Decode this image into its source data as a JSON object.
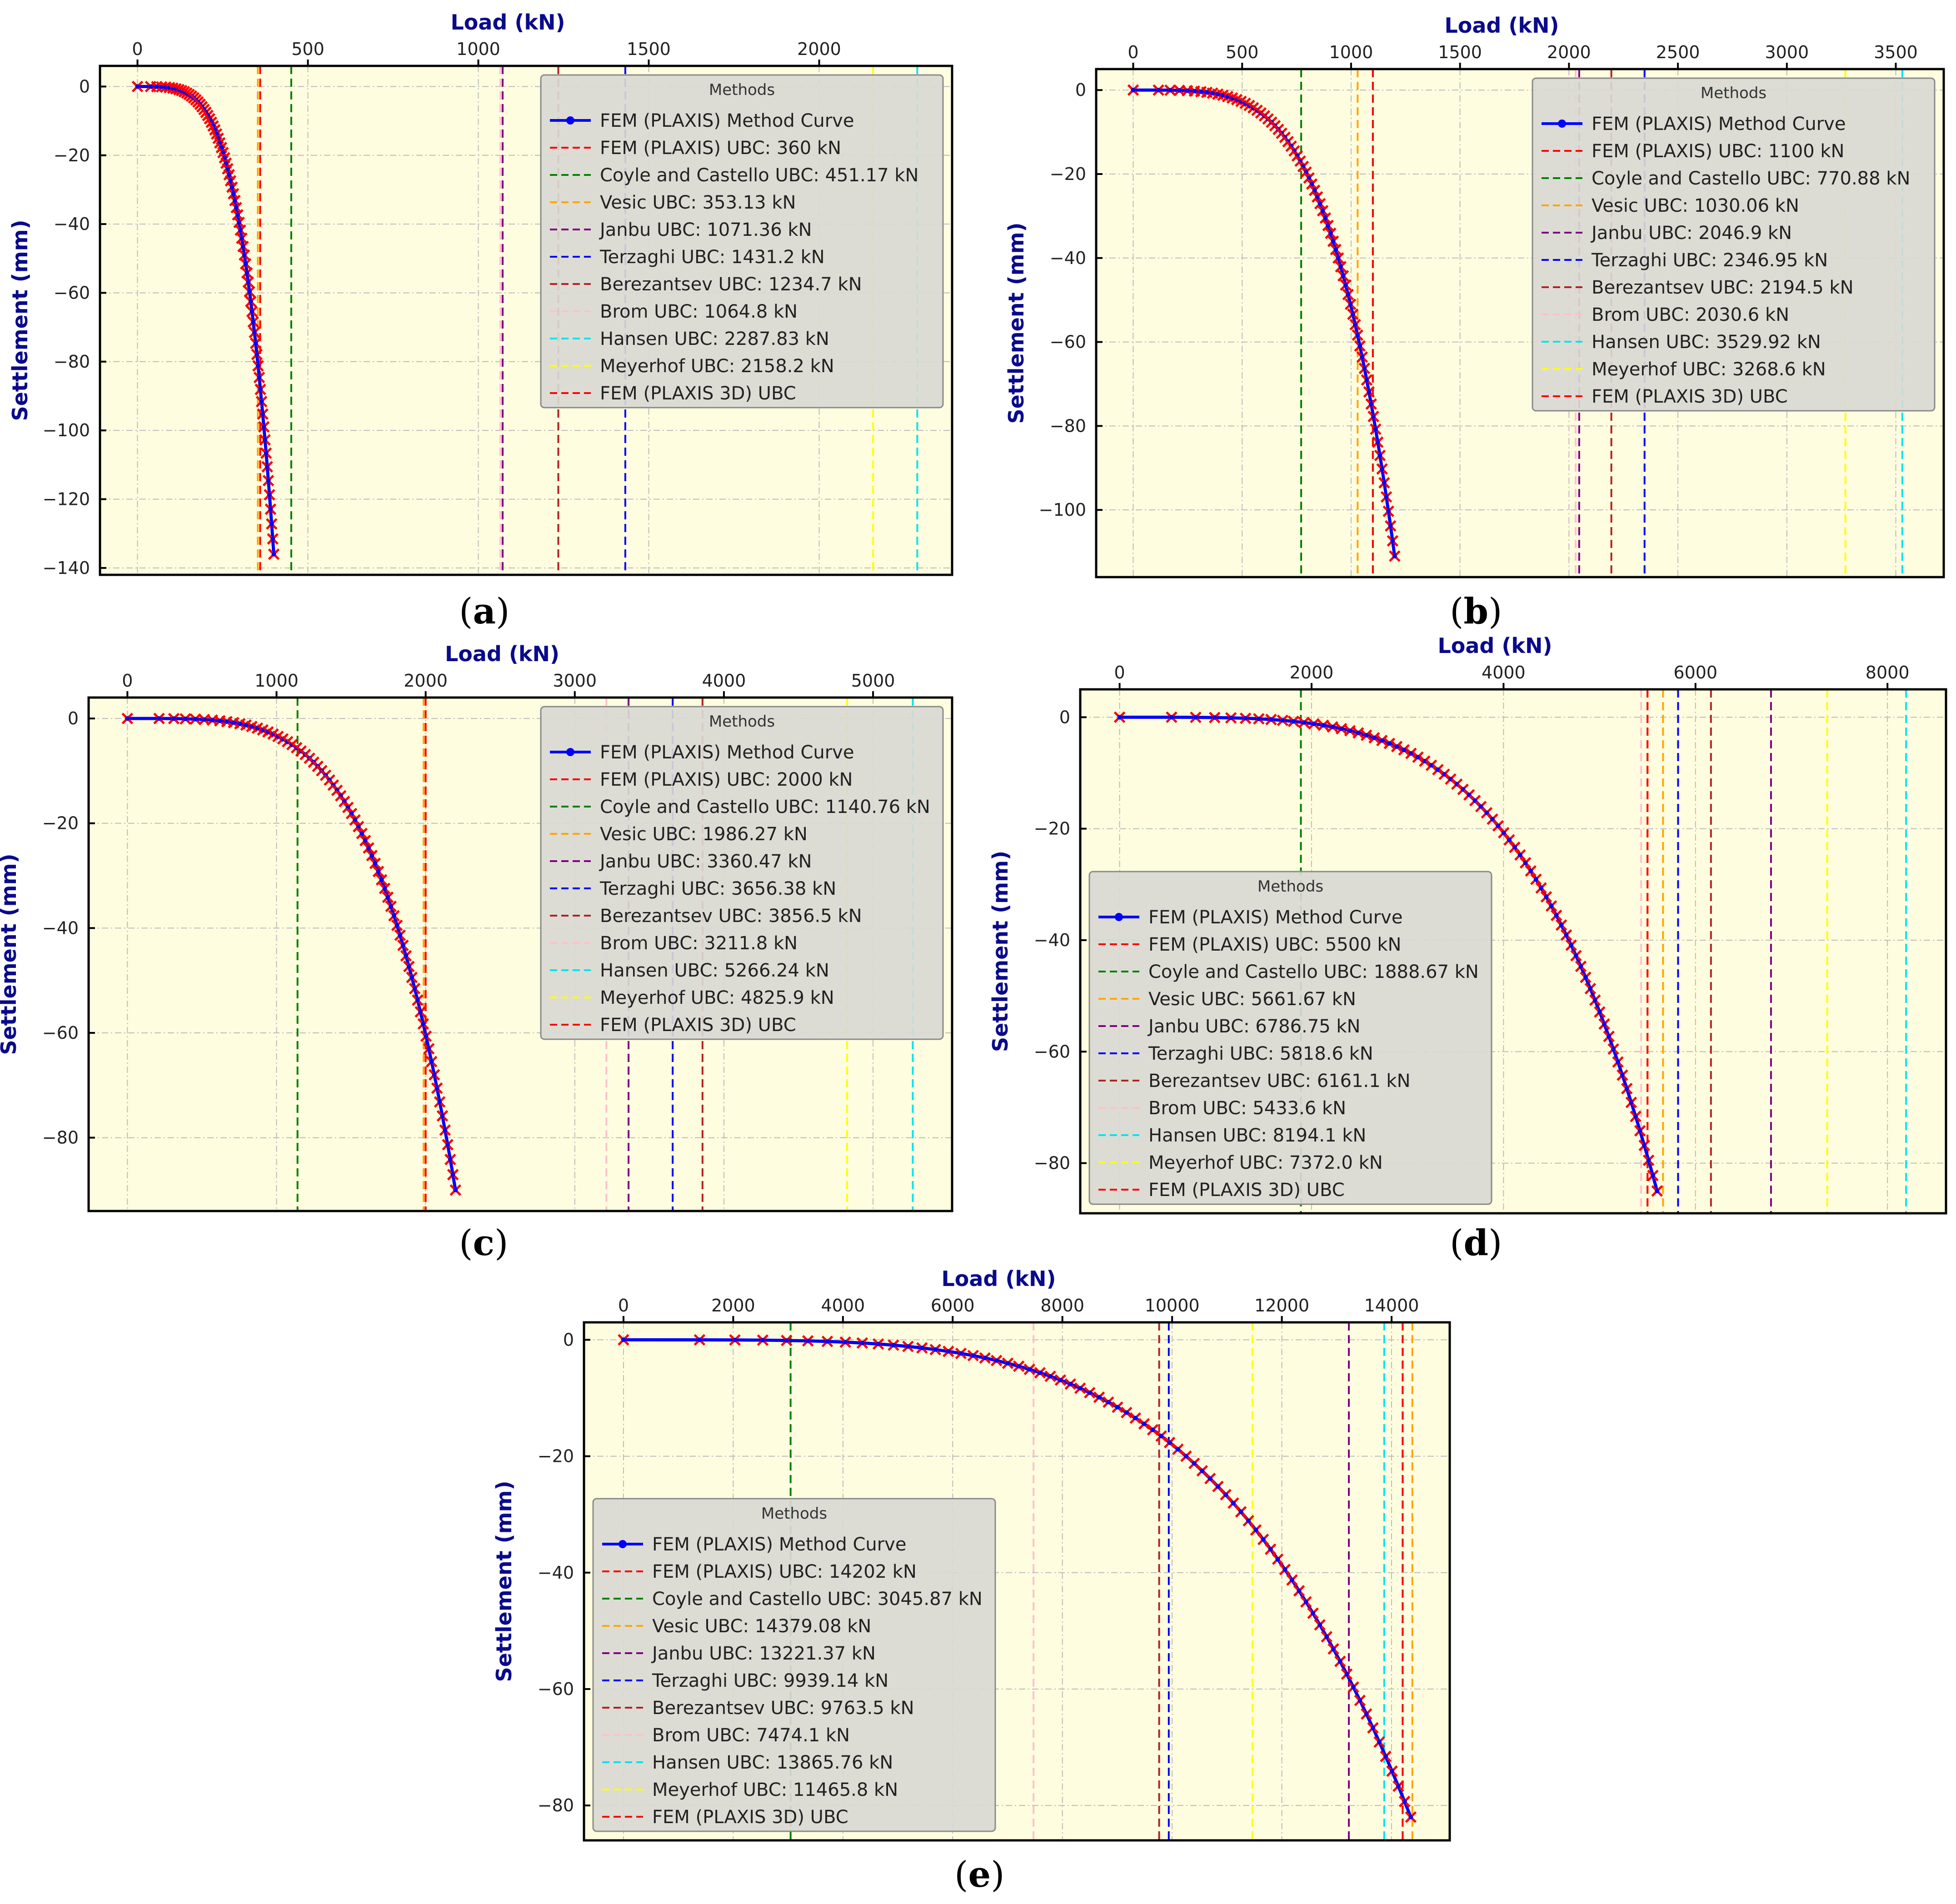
{
  "chart_data": [
    {
      "id": "a",
      "type": "line",
      "caption": "a",
      "xlabel": "Load (kN)",
      "ylabel": "Settlement (mm)",
      "xticks": [
        0,
        500,
        1000,
        1500,
        2000
      ],
      "yticks": [
        0,
        -20,
        -40,
        -60,
        -80,
        -100,
        -120,
        -140
      ],
      "xlim": [
        -110,
        2390
      ],
      "ylim": [
        -142,
        6
      ],
      "legend_title": "Methods",
      "legend_position": "upper-right",
      "curve": {
        "name": "FEM (PLAXIS) Method Curve",
        "color": "#0000ff",
        "end_load": 400,
        "end_settlement": -136
      },
      "ubc_lines": [
        {
          "label": "FEM (PLAXIS) UBC: 360 kN",
          "value": 360,
          "color": "#ff0000"
        },
        {
          "label": "Coyle and Castello UBC: 451.17 kN",
          "value": 451.17,
          "color": "#008000"
        },
        {
          "label": "Vesic UBC: 353.13 kN",
          "value": 353.13,
          "color": "#ffa500"
        },
        {
          "label": "Janbu UBC: 1071.36 kN",
          "value": 1071.36,
          "color": "#800080"
        },
        {
          "label": "Terzaghi UBC: 1431.2 kN",
          "value": 1431.2,
          "color": "#0000ff"
        },
        {
          "label": "Berezantsev UBC: 1234.7 kN",
          "value": 1234.7,
          "color": "#b22222"
        },
        {
          "label": "Brom UBC: 1064.8 kN",
          "value": 1064.8,
          "color": "#ffc0cb"
        },
        {
          "label": "Hansen UBC: 2287.83 kN",
          "value": 2287.83,
          "color": "#00e5ee"
        },
        {
          "label": "Meyerhof UBC: 2158.2 kN",
          "value": 2158.2,
          "color": "#ffff00"
        },
        {
          "label": "FEM (PLAXIS 3D) UBC",
          "value": 360,
          "color": "#ff0000"
        }
      ]
    },
    {
      "id": "b",
      "type": "line",
      "caption": "b",
      "xlabel": "Load (kN)",
      "ylabel": "Settlement (mm)",
      "xticks": [
        0,
        500,
        1000,
        1500,
        2000,
        2500,
        3000,
        3500
      ],
      "yticks": [
        0,
        -20,
        -40,
        -60,
        -80,
        -100
      ],
      "xlim": [
        -170,
        3720
      ],
      "ylim": [
        -116,
        5
      ],
      "legend_title": "Methods",
      "legend_position": "upper-right",
      "curve": {
        "name": "FEM (PLAXIS) Method Curve",
        "color": "#0000ff",
        "end_load": 1200,
        "end_settlement": -111
      },
      "ubc_lines": [
        {
          "label": "FEM (PLAXIS) UBC: 1100 kN",
          "value": 1100,
          "color": "#ff0000"
        },
        {
          "label": "Coyle and Castello UBC: 770.88 kN",
          "value": 770.88,
          "color": "#008000"
        },
        {
          "label": "Vesic UBC: 1030.06 kN",
          "value": 1030.06,
          "color": "#ffa500"
        },
        {
          "label": "Janbu UBC: 2046.9 kN",
          "value": 2046.9,
          "color": "#800080"
        },
        {
          "label": "Terzaghi UBC: 2346.95 kN",
          "value": 2346.95,
          "color": "#0000ff"
        },
        {
          "label": "Berezantsev UBC: 2194.5 kN",
          "value": 2194.5,
          "color": "#b22222"
        },
        {
          "label": "Brom UBC: 2030.6 kN",
          "value": 2030.6,
          "color": "#ffc0cb"
        },
        {
          "label": "Hansen UBC: 3529.92 kN",
          "value": 3529.92,
          "color": "#00e5ee"
        },
        {
          "label": "Meyerhof UBC: 3268.6 kN",
          "value": 3268.6,
          "color": "#ffff00"
        },
        {
          "label": "FEM (PLAXIS 3D) UBC",
          "value": 1100,
          "color": "#ff0000"
        }
      ]
    },
    {
      "id": "c",
      "type": "line",
      "caption": "c",
      "xlabel": "Load (kN)",
      "ylabel": "Settlement (mm)",
      "xticks": [
        0,
        1000,
        2000,
        3000,
        4000,
        5000
      ],
      "yticks": [
        0,
        -20,
        -40,
        -60,
        -80
      ],
      "xlim": [
        -260,
        5530
      ],
      "ylim": [
        -94,
        4
      ],
      "legend_title": "Methods",
      "legend_position": "upper-right",
      "curve": {
        "name": "FEM (PLAXIS) Method Curve",
        "color": "#0000ff",
        "end_load": 2200,
        "end_settlement": -90
      },
      "ubc_lines": [
        {
          "label": "FEM (PLAXIS) UBC: 2000 kN",
          "value": 2000,
          "color": "#ff0000"
        },
        {
          "label": "Coyle and Castello UBC: 1140.76 kN",
          "value": 1140.76,
          "color": "#008000"
        },
        {
          "label": "Vesic UBC: 1986.27 kN",
          "value": 1986.27,
          "color": "#ffa500"
        },
        {
          "label": "Janbu UBC: 3360.47 kN",
          "value": 3360.47,
          "color": "#800080"
        },
        {
          "label": "Terzaghi UBC: 3656.38 kN",
          "value": 3656.38,
          "color": "#0000ff"
        },
        {
          "label": "Berezantsev UBC: 3856.5 kN",
          "value": 3856.5,
          "color": "#b22222"
        },
        {
          "label": "Brom UBC: 3211.8 kN",
          "value": 3211.8,
          "color": "#ffc0cb"
        },
        {
          "label": "Hansen UBC: 5266.24 kN",
          "value": 5266.24,
          "color": "#00e5ee"
        },
        {
          "label": "Meyerhof UBC: 4825.9 kN",
          "value": 4825.9,
          "color": "#ffff00"
        },
        {
          "label": "FEM (PLAXIS 3D) UBC",
          "value": 2000,
          "color": "#ff0000"
        }
      ]
    },
    {
      "id": "d",
      "type": "line",
      "caption": "d",
      "xlabel": "Load (kN)",
      "ylabel": "Settlement (mm)",
      "xticks": [
        0,
        2000,
        4000,
        6000,
        8000
      ],
      "yticks": [
        0,
        -20,
        -40,
        -60,
        -80
      ],
      "xlim": [
        -410,
        8610
      ],
      "ylim": [
        -89,
        5
      ],
      "legend_title": "Methods",
      "legend_position": "lower-left",
      "curve": {
        "name": "FEM (PLAXIS) Method Curve",
        "color": "#0000ff",
        "end_load": 5600,
        "end_settlement": -85
      },
      "ubc_lines": [
        {
          "label": "FEM (PLAXIS) UBC: 5500 kN",
          "value": 5500,
          "color": "#ff0000"
        },
        {
          "label": "Coyle and Castello UBC: 1888.67 kN",
          "value": 1888.67,
          "color": "#008000"
        },
        {
          "label": "Vesic UBC: 5661.67 kN",
          "value": 5661.67,
          "color": "#ffa500"
        },
        {
          "label": "Janbu UBC: 6786.75 kN",
          "value": 6786.75,
          "color": "#800080"
        },
        {
          "label": "Terzaghi UBC: 5818.6 kN",
          "value": 5818.6,
          "color": "#0000ff"
        },
        {
          "label": "Berezantsev UBC: 6161.1 kN",
          "value": 6161.1,
          "color": "#b22222"
        },
        {
          "label": "Brom UBC: 5433.6 kN",
          "value": 5433.6,
          "color": "#ffc0cb"
        },
        {
          "label": "Hansen UBC: 8194.1 kN",
          "value": 8194.1,
          "color": "#00e5ee"
        },
        {
          "label": "Meyerhof UBC: 7372.0 kN",
          "value": 7372.0,
          "color": "#ffff00"
        },
        {
          "label": "FEM (PLAXIS 3D) UBC",
          "value": 5500,
          "color": "#ff0000"
        }
      ]
    },
    {
      "id": "e",
      "type": "line",
      "caption": "e",
      "xlabel": "Load (kN)",
      "ylabel": "Settlement (mm)",
      "xticks": [
        0,
        2000,
        4000,
        6000,
        8000,
        10000,
        12000,
        14000
      ],
      "yticks": [
        0,
        -20,
        -40,
        -60,
        -80
      ],
      "xlim": [
        -720,
        15060
      ],
      "ylim": [
        -86,
        3
      ],
      "legend_title": "Methods",
      "legend_position": "lower-left",
      "curve": {
        "name": "FEM (PLAXIS) Method Curve",
        "color": "#0000ff",
        "end_load": 14350,
        "end_settlement": -82
      },
      "ubc_lines": [
        {
          "label": "FEM (PLAXIS) UBC: 14202 kN",
          "value": 14202,
          "color": "#ff0000"
        },
        {
          "label": "Coyle and Castello UBC: 3045.87 kN",
          "value": 3045.87,
          "color": "#008000"
        },
        {
          "label": "Vesic UBC: 14379.08 kN",
          "value": 14379.08,
          "color": "#ffa500"
        },
        {
          "label": "Janbu UBC: 13221.37 kN",
          "value": 13221.37,
          "color": "#800080"
        },
        {
          "label": "Terzaghi UBC: 9939.14 kN",
          "value": 9939.14,
          "color": "#0000ff"
        },
        {
          "label": "Berezantsev UBC: 9763.5 kN",
          "value": 9763.5,
          "color": "#b22222"
        },
        {
          "label": "Brom UBC: 7474.1 kN",
          "value": 7474.1,
          "color": "#ffc0cb"
        },
        {
          "label": "Hansen UBC: 13865.76 kN",
          "value": 13865.76,
          "color": "#00e5ee"
        },
        {
          "label": "Meyerhof UBC: 11465.8 kN",
          "value": 11465.8,
          "color": "#ffff00"
        },
        {
          "label": "FEM (PLAXIS 3D) UBC",
          "value": 14202,
          "color": "#ff0000"
        }
      ]
    }
  ]
}
